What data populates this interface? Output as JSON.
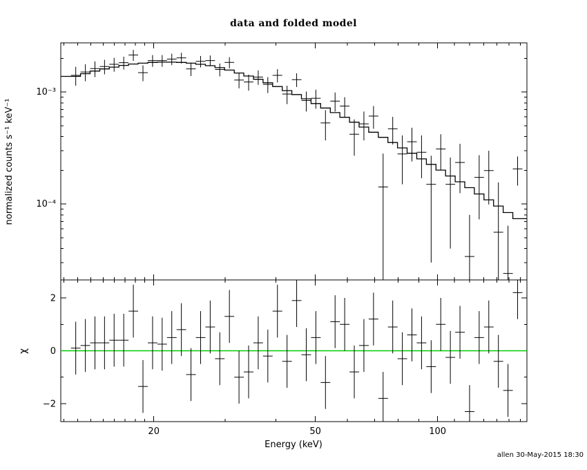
{
  "title": "data and folded model",
  "signature": "allen 30-May-2015 18:30",
  "colors": {
    "foreground": "#000000",
    "background": "#ffffff",
    "zero_line": "#00cc00"
  },
  "chart_data": {
    "type": "scatter",
    "title": "data and folded model",
    "layout": "two stacked panels, shared log x-axis, data crosses with error bars, stepped folded model",
    "x_axis": {
      "label": "Energy (keV)",
      "scale": "log",
      "range": [
        11.8,
        166
      ],
      "major_ticks": [
        20,
        50,
        100
      ],
      "tick_labels": [
        "20",
        "50",
        "100"
      ],
      "minor_ticks": [
        12,
        13,
        14,
        15,
        16,
        17,
        18,
        19,
        30,
        40,
        60,
        70,
        80,
        90,
        110,
        120,
        130,
        140,
        150,
        160
      ]
    },
    "top_panel": {
      "ylabel": "normalized counts s⁻¹ keV⁻¹",
      "yscale": "log",
      "range": [
        2.1e-05,
        0.00275
      ],
      "major_ticks": [
        {
          "value": 0.001,
          "label": "10⁻³"
        },
        {
          "value": 0.0001,
          "label": "10⁻⁴"
        }
      ],
      "minor_ticks": [
        0.002,
        0.0009,
        0.0008,
        0.0007,
        0.0006,
        0.0005,
        0.0004,
        0.0003,
        0.0002,
        9e-05,
        8e-05,
        7e-05,
        6e-05,
        5e-05,
        4e-05,
        3e-05
      ]
    },
    "bottom_panel": {
      "ylabel": "χ",
      "yscale": "linear",
      "range": [
        -2.68,
        2.68
      ],
      "major_ticks": [
        {
          "value": 2,
          "label": "2"
        },
        {
          "value": 0,
          "label": "0"
        },
        {
          "value": -2,
          "label": "−2"
        }
      ],
      "minor_ticks": [
        -1,
        1
      ],
      "chi_error": 1,
      "zero_line_color": "#00cc00"
    },
    "bins_kev": [
      12.5,
      13.2,
      13.94,
      14.72,
      15.54,
      16.41,
      17.33,
      18.3,
      19.33,
      20.41,
      21.55,
      22.76,
      24.03,
      25.38,
      26.8,
      28.3,
      29.88,
      31.56,
      33.32,
      35.19,
      37.16,
      39.24,
      41.44,
      43.76,
      46.21,
      48.8,
      51.53,
      54.42,
      57.46,
      60.68,
      64.08,
      67.67,
      71.46,
      75.46,
      79.69,
      84.15,
      88.86,
      93.84,
      99.09,
      104.64,
      110.5,
      116.69,
      123.22,
      130.12,
      137.41,
      145.1,
      153.23,
      161.81
    ],
    "series": [
      {
        "name": "data",
        "style": "crosses-with-error-bars",
        "rate": [
          0.00141,
          0.00151,
          0.00162,
          0.00169,
          0.00177,
          0.00183,
          0.00214,
          0.00149,
          0.00191,
          0.00191,
          0.00197,
          0.00202,
          0.00161,
          0.00188,
          0.00191,
          0.00159,
          0.00184,
          0.00128,
          0.00123,
          0.00136,
          0.00117,
          0.00141,
          0.00096,
          0.00129,
          0.00084,
          0.00088,
          0.00053,
          0.00083,
          0.00075,
          0.00042,
          0.00052,
          0.00061,
          0.000142,
          0.00047,
          0.00028,
          0.00036,
          0.00029,
          0.00015,
          0.00031,
          0.00015,
          0.000235,
          3.4e-05,
          0.000173,
          0.000199,
          5.6e-05,
          2.4e-05,
          0.000206
        ],
        "rate_err": [
          0.00027,
          0.00026,
          0.00026,
          0.00025,
          0.00025,
          0.00024,
          0.00024,
          0.00024,
          0.00023,
          0.00023,
          0.00023,
          0.00022,
          0.00022,
          0.00022,
          0.00021,
          0.00021,
          0.00021,
          0.0002,
          0.0002,
          0.0002,
          0.00019,
          0.00019,
          0.00018,
          0.00018,
          0.00017,
          0.00017,
          0.00016,
          0.00016,
          0.00015,
          0.00015,
          0.00015,
          0.00014,
          0.00014,
          0.00013,
          0.00013,
          0.00012,
          0.00012,
          0.00012,
          0.00011,
          0.00011,
          0.00011,
          4.6e-05,
          0.0001,
          0.0001,
          0.0001,
          4e-05,
          6e-05
        ]
      },
      {
        "name": "folded model",
        "style": "step-histogram",
        "values": [
          0.00138,
          0.00146,
          0.00154,
          0.00161,
          0.00167,
          0.00173,
          0.00178,
          0.00181,
          0.00184,
          0.00185,
          0.00185,
          0.00184,
          0.00181,
          0.00177,
          0.00172,
          0.00165,
          0.00157,
          0.00148,
          0.00139,
          0.0013,
          0.00121,
          0.00112,
          0.00103,
          0.00095,
          0.00087,
          0.00079,
          0.00072,
          0.000655,
          0.000595,
          0.000538,
          0.000486,
          0.000438,
          0.000394,
          0.000354,
          0.000317,
          0.000284,
          0.000253,
          0.000226,
          0.000201,
          0.000178,
          0.000158,
          0.00014,
          0.000123,
          0.000109,
          9.6e-05,
          8.4e-05,
          7.4e-05
        ]
      },
      {
        "name": "chi residuals",
        "style": "crosses-with-error-bars",
        "values": [
          0.1,
          0.2,
          0.3,
          0.3,
          0.4,
          0.4,
          1.5,
          -1.35,
          0.3,
          0.25,
          0.5,
          0.8,
          -0.9,
          0.5,
          0.9,
          -0.3,
          1.3,
          -1.0,
          -0.8,
          0.3,
          -0.2,
          1.5,
          -0.4,
          1.9,
          -0.15,
          0.5,
          -1.2,
          1.1,
          1.0,
          -0.8,
          0.2,
          1.2,
          -1.8,
          0.9,
          -0.3,
          0.6,
          0.3,
          -0.6,
          1.0,
          -0.25,
          0.7,
          -2.3,
          0.5,
          0.9,
          -0.4,
          -1.5,
          2.2
        ]
      }
    ]
  }
}
